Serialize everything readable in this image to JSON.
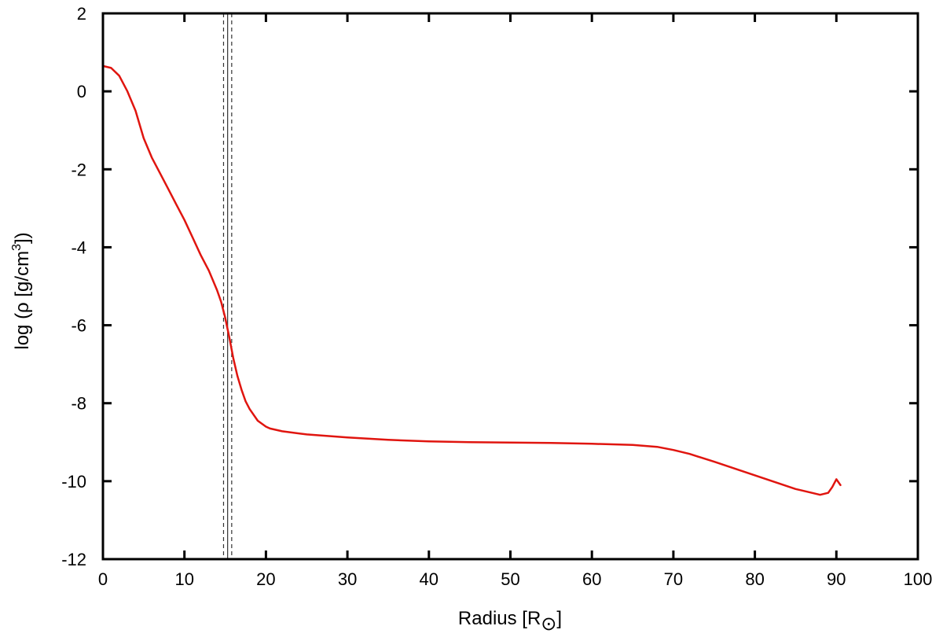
{
  "chart_data": {
    "type": "line",
    "xlabel": "Radius [R",
    "xlabel_symbol": "⊙",
    "xlabel_close": "]",
    "ylabel": "log  (ρ [g/cm",
    "ylabel_sup": "3",
    "ylabel_close": "])",
    "xlim": [
      0,
      100
    ],
    "ylim": [
      -12,
      2
    ],
    "x_ticks": [
      0,
      10,
      20,
      30,
      40,
      50,
      60,
      70,
      80,
      90,
      100
    ],
    "y_ticks": [
      2,
      0,
      -2,
      -4,
      -6,
      -8,
      -10,
      -12
    ],
    "grid": false,
    "legend": "none",
    "vertical_lines": [
      {
        "x": 14.8,
        "style": "dashed"
      },
      {
        "x": 15.3,
        "style": "solid"
      },
      {
        "x": 15.8,
        "style": "dashed"
      }
    ],
    "series": [
      {
        "color": "#e0150f",
        "x": [
          0,
          1,
          2,
          3,
          4,
          5,
          6,
          7,
          8,
          9,
          10,
          11,
          12,
          13,
          14,
          14.5,
          15,
          15.5,
          16,
          16.5,
          17,
          17.5,
          18,
          19,
          20,
          20.5,
          22,
          25,
          30,
          35,
          40,
          45,
          50,
          55,
          60,
          65,
          68,
          70,
          72,
          75,
          80,
          85,
          87,
          88,
          89,
          89.5,
          90,
          90.5
        ],
        "y": [
          0.65,
          0.6,
          0.4,
          0.0,
          -0.5,
          -1.2,
          -1.7,
          -2.1,
          -2.5,
          -2.9,
          -3.3,
          -3.75,
          -4.2,
          -4.6,
          -5.1,
          -5.4,
          -5.8,
          -6.3,
          -6.85,
          -7.3,
          -7.65,
          -7.95,
          -8.15,
          -8.45,
          -8.6,
          -8.65,
          -8.72,
          -8.8,
          -8.88,
          -8.94,
          -8.98,
          -9.0,
          -9.01,
          -9.02,
          -9.04,
          -9.07,
          -9.12,
          -9.2,
          -9.3,
          -9.5,
          -9.85,
          -10.2,
          -10.3,
          -10.35,
          -10.3,
          -10.15,
          -9.95,
          -10.1
        ]
      }
    ]
  }
}
